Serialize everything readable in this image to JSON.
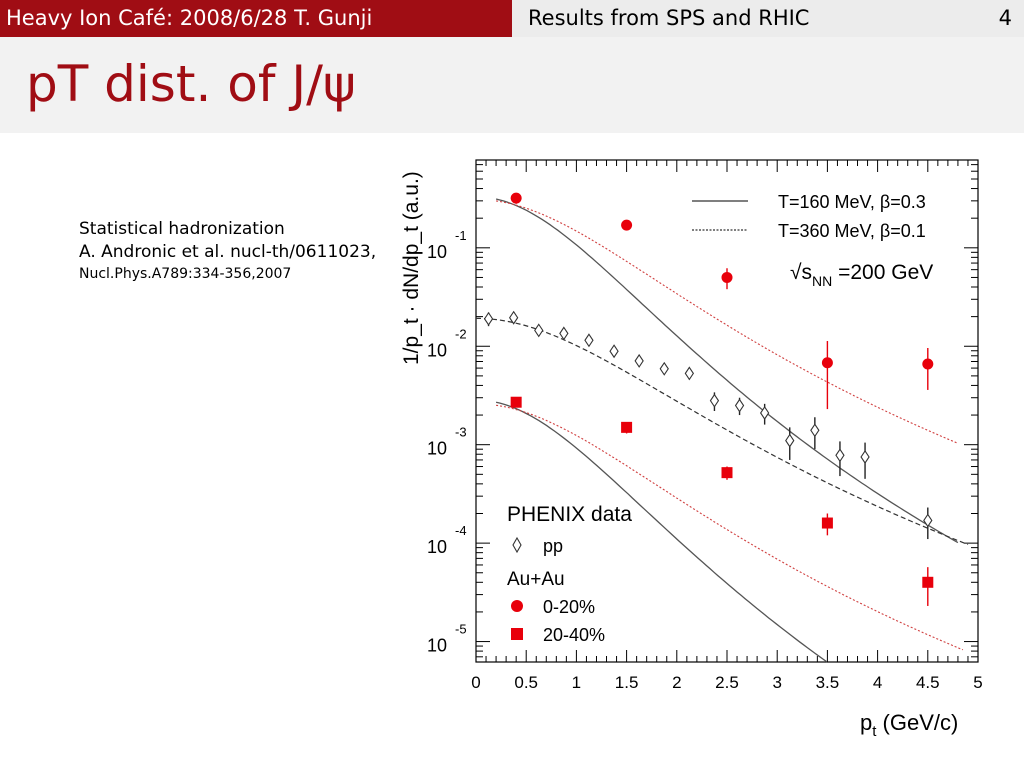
{
  "header": {
    "left": "Heavy Ion Café: 2008/6/28 T. Gunji",
    "center": "Results from SPS and RHIC",
    "page_number": "4"
  },
  "slide_title": "pT dist. of J/ψ",
  "note": {
    "line1": "Statistical hadronization",
    "line2": "A. Andronic et al. nucl-th/0611023,",
    "line3": "Nucl.Phys.A789:334-356,2007"
  },
  "colors": {
    "accent": "#a00d14",
    "data_red": "#e8000b",
    "model": "#555555"
  },
  "chart_data": {
    "type": "scatter",
    "xlabel": "p_t (GeV/c)",
    "ylabel": "1/p_t · dN/dp_t (a.u.)",
    "xlim": [
      0,
      5
    ],
    "ylim": [
      6.2e-06,
      0.78
    ],
    "yscale": "log",
    "x_ticks": [
      "0",
      "0.5",
      "1",
      "1.5",
      "2",
      "2.5",
      "3",
      "3.5",
      "4",
      "4.5",
      "5"
    ],
    "y_ticks": [
      {
        "base": "10",
        "exp": "-1",
        "value": 0.1
      },
      {
        "base": "10",
        "exp": "-2",
        "value": 0.01
      },
      {
        "base": "10",
        "exp": "-3",
        "value": 0.001
      },
      {
        "base": "10",
        "exp": "-4",
        "value": 0.0001
      },
      {
        "base": "10",
        "exp": "-5",
        "value": 1e-05
      }
    ],
    "energy_label": {
      "prefix": "√s",
      "sub": "NN",
      "suffix": " =200 GeV"
    },
    "model_legend": [
      {
        "label": "T=160 MeV, β=0.3",
        "style": "solid"
      },
      {
        "label": "T=360 MeV, β=0.1",
        "style": "dotted"
      }
    ],
    "data_legend": {
      "header": "PHENIX data",
      "pp_label": "pp",
      "auau_header": "Au+Au",
      "central_label": "0-20%",
      "semi_label": "20-40%"
    },
    "series": [
      {
        "name": "0-20%",
        "marker": "circle",
        "color": "#e8000b",
        "points": [
          {
            "x": 0.4,
            "y": 0.32,
            "err": 0.04
          },
          {
            "x": 1.5,
            "y": 0.17,
            "err": 0.02
          },
          {
            "x": 2.5,
            "y": 0.05,
            "err": 0.012
          },
          {
            "x": 3.5,
            "y": 0.0068,
            "err": 0.0045
          },
          {
            "x": 4.5,
            "y": 0.0066,
            "err": 0.003
          }
        ]
      },
      {
        "name": "20-40%",
        "marker": "square",
        "color": "#e8000b",
        "points": [
          {
            "x": 0.4,
            "y": 0.0027,
            "err": 0.0003
          },
          {
            "x": 1.5,
            "y": 0.0015,
            "err": 0.0002
          },
          {
            "x": 2.5,
            "y": 0.00052,
            "err": 8e-05
          },
          {
            "x": 3.5,
            "y": 0.00016,
            "err": 4e-05
          },
          {
            "x": 4.5,
            "y": 4e-05,
            "err": 1.7e-05
          }
        ]
      },
      {
        "name": "pp",
        "marker": "diamond",
        "color": "#333333",
        "points": [
          {
            "x": 0.125,
            "y": 0.019,
            "err": 0.003
          },
          {
            "x": 0.375,
            "y": 0.0195,
            "err": 0.002
          },
          {
            "x": 0.625,
            "y": 0.0145,
            "err": 0.0015
          },
          {
            "x": 0.875,
            "y": 0.0135,
            "err": 0.0013
          },
          {
            "x": 1.125,
            "y": 0.0115,
            "err": 0.0012
          },
          {
            "x": 1.375,
            "y": 0.0089,
            "err": 0.001
          },
          {
            "x": 1.625,
            "y": 0.0071,
            "err": 0.0008
          },
          {
            "x": 1.875,
            "y": 0.0059,
            "err": 0.0007
          },
          {
            "x": 2.125,
            "y": 0.0053,
            "err": 0.0007
          },
          {
            "x": 2.375,
            "y": 0.0028,
            "err": 0.0006
          },
          {
            "x": 2.625,
            "y": 0.0025,
            "err": 0.0005
          },
          {
            "x": 2.875,
            "y": 0.0021,
            "err": 0.0005
          },
          {
            "x": 3.125,
            "y": 0.0011,
            "err": 0.0004
          },
          {
            "x": 3.375,
            "y": 0.0014,
            "err": 0.0005
          },
          {
            "x": 3.625,
            "y": 0.00078,
            "err": 0.0003
          },
          {
            "x": 3.875,
            "y": 0.00075,
            "err": 0.0003
          },
          {
            "x": 4.5,
            "y": 0.00017,
            "err": 6e-05
          }
        ]
      }
    ]
  }
}
